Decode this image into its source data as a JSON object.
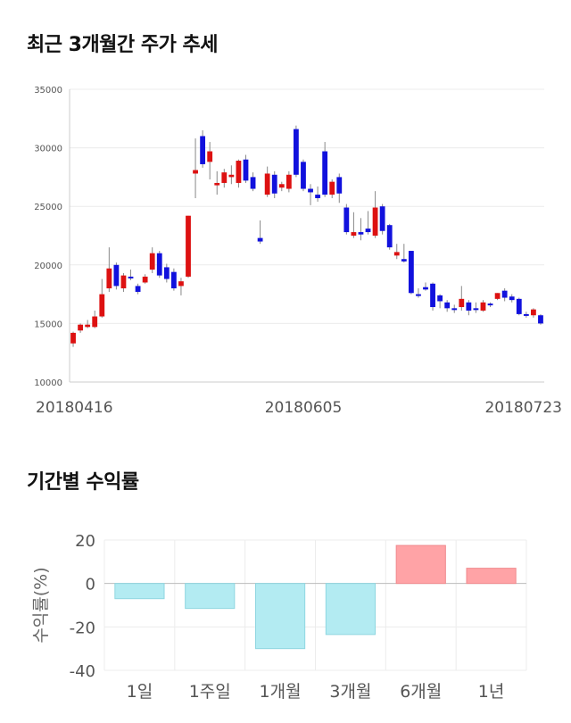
{
  "charts_titles": {
    "price_trend": "최근 3개월간 주가 추세",
    "period_returns": "기간별 수익률"
  },
  "chart_data": [
    {
      "type": "candlestick",
      "title": "최근 3개월간 주가 추세",
      "ylim": [
        10000,
        35000
      ],
      "y_ticks": [
        10000,
        15000,
        20000,
        25000,
        30000,
        35000
      ],
      "x_tick_labels": [
        "20180416",
        "20180605",
        "20180723"
      ],
      "grid": true,
      "up_color": "#dd1111",
      "down_color": "#1111dd",
      "candles": [
        [
          13300,
          14200,
          14300,
          13000
        ],
        [
          14400,
          14900,
          15000,
          14200
        ],
        [
          14700,
          14900,
          15300,
          14600
        ],
        [
          14700,
          15600,
          16100,
          14600
        ],
        [
          15600,
          17500,
          18800,
          15500
        ],
        [
          18000,
          19700,
          21500,
          17700
        ],
        [
          20000,
          18200,
          20200,
          17900
        ],
        [
          18000,
          19100,
          19300,
          17700
        ],
        [
          19000,
          18900,
          19600,
          18700
        ],
        [
          18200,
          17700,
          18400,
          17500
        ],
        [
          18500,
          19000,
          19200,
          18400
        ],
        [
          19600,
          21000,
          21500,
          19300
        ],
        [
          21000,
          19100,
          21200,
          18900
        ],
        [
          19800,
          18800,
          20100,
          18500
        ],
        [
          19400,
          18000,
          19700,
          17800
        ],
        [
          18200,
          18600,
          18900,
          17400
        ],
        [
          19000,
          24200,
          24200,
          18900
        ],
        [
          27800,
          28100,
          30800,
          25700
        ],
        [
          31000,
          28600,
          31500,
          28300
        ],
        [
          28800,
          29700,
          30500,
          27300
        ],
        [
          26800,
          27000,
          28000,
          26000
        ],
        [
          27000,
          27900,
          28200,
          26600
        ],
        [
          27500,
          27700,
          28500,
          26900
        ],
        [
          27000,
          28900,
          29000,
          26600
        ],
        [
          29000,
          27200,
          29400,
          27000
        ],
        [
          27500,
          26500,
          27900,
          26300
        ],
        [
          22300,
          22000,
          23800,
          21800
        ],
        [
          26000,
          27800,
          28400,
          25800
        ],
        [
          27700,
          26100,
          28000,
          25700
        ],
        [
          26600,
          26900,
          27100,
          26300
        ],
        [
          26500,
          27700,
          28000,
          26200
        ],
        [
          31600,
          27700,
          31900,
          27500
        ],
        [
          28800,
          26500,
          29000,
          26300
        ],
        [
          26500,
          26200,
          26900,
          25100
        ],
        [
          26000,
          25700,
          26700,
          25400
        ],
        [
          29700,
          26000,
          30500,
          25800
        ],
        [
          26000,
          27100,
          27300,
          25700
        ],
        [
          27500,
          26100,
          27800,
          25300
        ],
        [
          24900,
          22800,
          25200,
          22600
        ],
        [
          22500,
          22800,
          24500,
          22300
        ],
        [
          22800,
          22600,
          24000,
          22100
        ],
        [
          23100,
          22800,
          24600,
          22600
        ],
        [
          22500,
          24900,
          26300,
          22300
        ],
        [
          25000,
          22900,
          25200,
          22600
        ],
        [
          23400,
          21500,
          23500,
          21300
        ],
        [
          20800,
          21100,
          21800,
          20500
        ],
        [
          20500,
          20300,
          21800,
          20200
        ],
        [
          21200,
          17600,
          21200,
          17500
        ],
        [
          17500,
          17400,
          18000,
          17200
        ],
        [
          18100,
          17900,
          18500,
          17800
        ],
        [
          18400,
          16400,
          18500,
          16100
        ],
        [
          17400,
          16900,
          17500,
          16300
        ],
        [
          16800,
          16300,
          17000,
          16000
        ],
        [
          16300,
          16200,
          16600,
          15900
        ],
        [
          16400,
          17100,
          18200,
          16100
        ],
        [
          16800,
          16100,
          17000,
          15700
        ],
        [
          16300,
          16200,
          16800,
          15900
        ],
        [
          16100,
          16800,
          17000,
          16000
        ],
        [
          16700,
          16600,
          16800,
          16400
        ],
        [
          17100,
          17600,
          17600,
          17000
        ],
        [
          17800,
          17200,
          18000,
          16900
        ],
        [
          17300,
          17000,
          17500,
          16800
        ],
        [
          17100,
          15800,
          17200,
          15700
        ],
        [
          15800,
          15700,
          16000,
          15500
        ],
        [
          15700,
          16200,
          16300,
          15500
        ],
        [
          15700,
          15000,
          15800,
          14900
        ]
      ]
    },
    {
      "type": "bar",
      "title": "기간별 수익률",
      "categories": [
        "1일",
        "1주일",
        "1개월",
        "3개월",
        "6개월",
        "1년"
      ],
      "values": [
        -7.0,
        -11.5,
        -30.0,
        -23.5,
        17.5,
        7.0
      ],
      "ylabel": "수익률(%)",
      "ylim": [
        -40,
        20
      ],
      "y_ticks": [
        -40,
        -20,
        0,
        20
      ],
      "grid": true,
      "positive_color": "#ffa3a6",
      "negative_color": "#b3ebf2"
    }
  ]
}
